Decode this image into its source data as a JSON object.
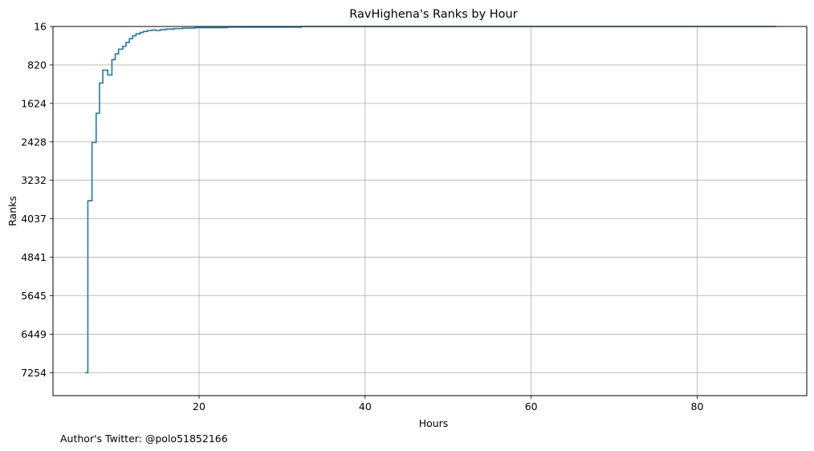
{
  "chart_data": {
    "type": "line",
    "step": true,
    "title": "RavHighena's Ranks by Hour",
    "xlabel": "Hours",
    "ylabel": "Ranks",
    "footer": "Author's Twitter: @polo51852166",
    "x_ticks": [
      "20",
      "40",
      "60",
      "80"
    ],
    "x_tick_values": [
      20,
      40,
      60,
      80
    ],
    "xlim": [
      2.4,
      93.2
    ],
    "y_ticks": [
      "16",
      "820",
      "1624",
      "2428",
      "3232",
      "4037",
      "4841",
      "5645",
      "6449",
      "7254"
    ],
    "y_tick_values": [
      16,
      820,
      1624,
      2428,
      3232,
      4037,
      4841,
      5645,
      6449,
      7254
    ],
    "ylim": [
      7734,
      16
    ],
    "y_inverted": true,
    "grid": true,
    "series": [
      {
        "name": "RavHighena",
        "color": "#1f77b4",
        "points": [
          [
            6.3,
            7254
          ],
          [
            6.6,
            3660
          ],
          [
            7.1,
            2440
          ],
          [
            7.6,
            1830
          ],
          [
            8.0,
            1200
          ],
          [
            8.4,
            930
          ],
          [
            9.0,
            1030
          ],
          [
            9.5,
            710
          ],
          [
            9.9,
            590
          ],
          [
            10.3,
            490
          ],
          [
            10.8,
            430
          ],
          [
            11.2,
            350
          ],
          [
            11.6,
            270
          ],
          [
            12.0,
            210
          ],
          [
            12.4,
            170
          ],
          [
            12.9,
            140
          ],
          [
            13.3,
            120
          ],
          [
            13.8,
            100
          ],
          [
            14.3,
            90
          ],
          [
            14.8,
            100
          ],
          [
            15.3,
            85
          ],
          [
            16.0,
            70
          ],
          [
            17.0,
            60
          ],
          [
            18.0,
            50
          ],
          [
            19.5,
            40
          ],
          [
            23.4,
            30
          ],
          [
            32.3,
            16
          ],
          [
            89.5,
            16
          ]
        ]
      }
    ]
  }
}
